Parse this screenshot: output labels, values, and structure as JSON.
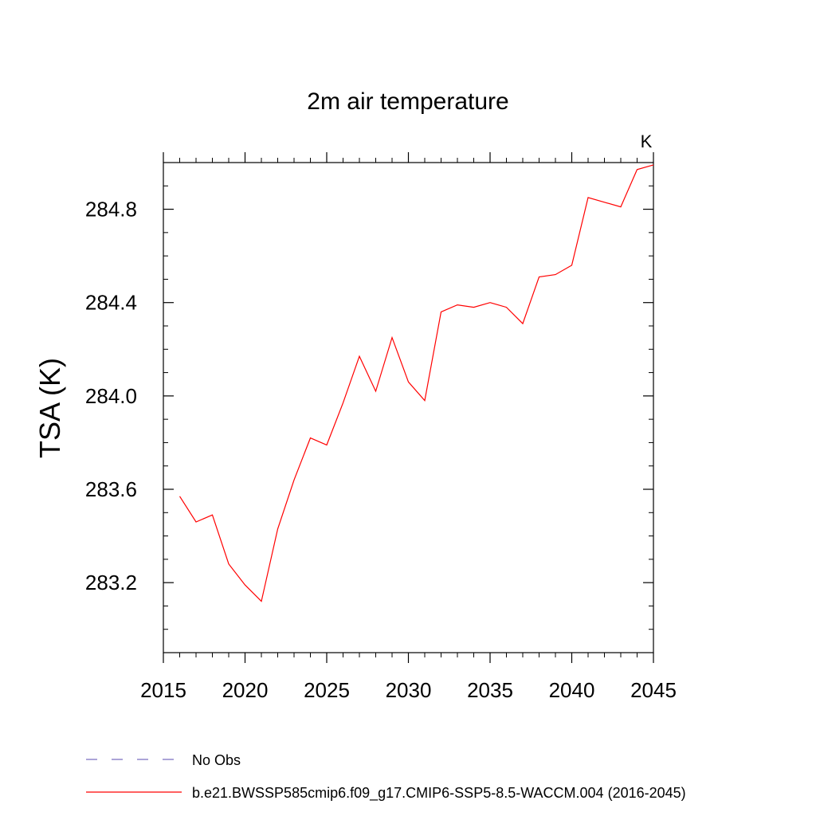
{
  "chart_data": {
    "type": "line",
    "title": "2m air temperature",
    "units_label": "K",
    "ylabel": "TSA  (K)",
    "xlabel": "",
    "xlim": [
      2015,
      2045
    ],
    "ylim": [
      282.9,
      285.0
    ],
    "x_ticks": [
      2015,
      2020,
      2025,
      2030,
      2035,
      2040,
      2045
    ],
    "x_tick_labels": [
      "2015",
      "2020",
      "2025",
      "2030",
      "2035",
      "2040",
      "2045"
    ],
    "y_ticks": [
      283.2,
      283.6,
      284.0,
      284.4,
      284.8
    ],
    "y_tick_labels": [
      "283.2",
      "283.6",
      "284.0",
      "284.4",
      "284.8"
    ],
    "grid": false,
    "legend_position": "bottom",
    "legend": [
      {
        "label": "No Obs",
        "color": "#7a6fc0",
        "style": "dashed"
      },
      {
        "label": "b.e21.BWSSP585cmip6.f09_g17.CMIP6-SSP5-8.5-WACCM.004 (2016-2045)",
        "color": "#ff0000",
        "style": "solid"
      }
    ],
    "series": [
      {
        "name": "b.e21.BWSSP585cmip6.f09_g17.CMIP6-SSP5-8.5-WACCM.004 (2016-2045)",
        "color": "#ff0000",
        "x": [
          2016,
          2017,
          2018,
          2019,
          2020,
          2021,
          2022,
          2023,
          2024,
          2025,
          2026,
          2027,
          2028,
          2029,
          2030,
          2031,
          2032,
          2033,
          2034,
          2035,
          2036,
          2037,
          2038,
          2039,
          2040,
          2041,
          2042,
          2043,
          2044,
          2045
        ],
        "values": [
          283.57,
          283.46,
          283.49,
          283.28,
          283.19,
          283.12,
          283.43,
          283.64,
          283.82,
          283.79,
          283.97,
          284.17,
          284.02,
          284.25,
          284.06,
          283.98,
          284.36,
          284.39,
          284.38,
          284.4,
          284.38,
          284.31,
          284.51,
          284.52,
          284.56,
          284.85,
          284.83,
          284.81,
          284.97,
          284.99
        ]
      }
    ]
  }
}
